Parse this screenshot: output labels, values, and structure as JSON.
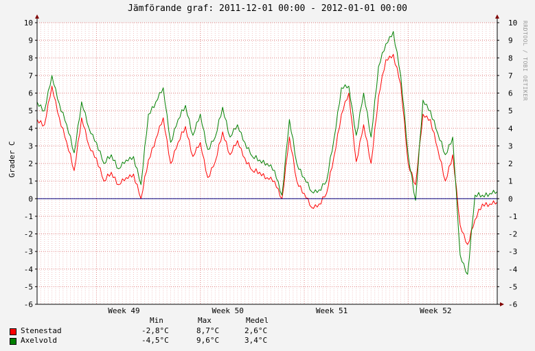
{
  "header": {
    "title": "Jämförande graf: 2011-12-01 00:00 - 2012-01-01 00:00",
    "watermark": "RRDTOOL / TOBI OETIKER"
  },
  "colors": {
    "background": "#F3F3F3",
    "plot_background": "#FFFFFF",
    "grid_minor": "#F0C0C0",
    "grid_major": "#E08080",
    "zero_line": "#000080",
    "axis": "#000000",
    "arrow": "#800000"
  },
  "chart_data": {
    "type": "line",
    "title": "Jämförande graf: 2011-12-01 00:00 - 2012-01-01 00:00",
    "ylabel": "Grader C",
    "xlabel": "",
    "ylim": [
      -6,
      10
    ],
    "xlim": [
      "2011-12-01 00:00",
      "2012-01-01 00:00"
    ],
    "y_ticks": [
      -6,
      -5,
      -4,
      -3,
      -2,
      -1,
      0,
      1,
      2,
      3,
      4,
      5,
      6,
      7,
      8,
      9,
      10
    ],
    "x_ticks": [
      {
        "label": "Week 49",
        "x": "2011-12-05 00:00"
      },
      {
        "label": "Week 50",
        "x": "2011-12-12 00:00"
      },
      {
        "label": "Week 51",
        "x": "2011-12-19 00:00"
      },
      {
        "label": "Week 52",
        "x": "2011-12-26 00:00"
      }
    ],
    "grid": true,
    "legend_position": "bottom-left",
    "legend_headers": [
      "Min",
      "Max",
      "Medel"
    ],
    "x": [
      "2011-12-01",
      "2011-12-01 12:00",
      "2011-12-02",
      "2011-12-02 12:00",
      "2011-12-03",
      "2011-12-03 12:00",
      "2011-12-04",
      "2011-12-04 12:00",
      "2011-12-05",
      "2011-12-05 12:00",
      "2011-12-06",
      "2011-12-06 12:00",
      "2011-12-07",
      "2011-12-07 12:00",
      "2011-12-08",
      "2011-12-08 12:00",
      "2011-12-09",
      "2011-12-09 12:00",
      "2011-12-10",
      "2011-12-10 12:00",
      "2011-12-11",
      "2011-12-11 12:00",
      "2011-12-12",
      "2011-12-12 12:00",
      "2011-12-13",
      "2011-12-13 12:00",
      "2011-12-14",
      "2011-12-14 12:00",
      "2011-12-15",
      "2011-12-15 12:00",
      "2011-12-16",
      "2011-12-16 12:00",
      "2011-12-17",
      "2011-12-17 12:00",
      "2011-12-18",
      "2011-12-18 12:00",
      "2011-12-19",
      "2011-12-19 12:00",
      "2011-12-20",
      "2011-12-20 12:00",
      "2011-12-21",
      "2011-12-21 12:00",
      "2011-12-22",
      "2011-12-22 12:00",
      "2011-12-23",
      "2011-12-23 12:00",
      "2011-12-24",
      "2011-12-24 12:00",
      "2011-12-25",
      "2011-12-25 12:00",
      "2011-12-26",
      "2011-12-26 12:00",
      "2011-12-27",
      "2011-12-27 12:00",
      "2011-12-28",
      "2011-12-28 12:00",
      "2011-12-29",
      "2011-12-29 12:00",
      "2011-12-30",
      "2011-12-30 12:00",
      "2011-12-31",
      "2011-12-31 12:00",
      "2012-01-01"
    ],
    "series": [
      {
        "name": "Stenestad",
        "color": "#FF0000",
        "min": "-2,8°C",
        "max": "8,7°C",
        "mean": "2,6°C",
        "values": [
          4.5,
          4.2,
          6.4,
          4.6,
          3.2,
          1.6,
          4.6,
          3.0,
          2.3,
          1.0,
          1.5,
          0.8,
          1.2,
          1.4,
          0.0,
          2.2,
          3.4,
          4.6,
          2.0,
          3.2,
          4.1,
          2.4,
          3.2,
          1.2,
          2.1,
          3.8,
          2.5,
          3.3,
          2.3,
          1.6,
          1.5,
          1.2,
          1.0,
          0.0,
          3.5,
          1.0,
          0.3,
          -0.5,
          -0.3,
          0.3,
          2.4,
          4.8,
          6.0,
          2.1,
          4.2,
          2.0,
          5.8,
          7.9,
          8.2,
          6.5,
          2.0,
          0.8,
          4.8,
          4.5,
          2.8,
          1.0,
          2.5,
          -1.5,
          -2.6,
          -1.2,
          -0.3,
          -0.3,
          -0.2
        ]
      },
      {
        "name": "Axelvold",
        "color": "#008000",
        "min": "-4,5°C",
        "max": "9,6°C",
        "mean": "3,4°C",
        "values": [
          5.5,
          5.0,
          7.0,
          5.4,
          4.2,
          2.6,
          5.5,
          4.0,
          3.2,
          2.0,
          2.5,
          1.7,
          2.2,
          2.4,
          0.8,
          4.8,
          5.5,
          6.3,
          3.2,
          4.5,
          5.3,
          3.6,
          4.8,
          2.8,
          3.5,
          5.2,
          3.5,
          4.2,
          3.2,
          2.4,
          2.2,
          2.0,
          1.6,
          0.2,
          4.5,
          2.0,
          1.2,
          0.4,
          0.5,
          1.0,
          3.4,
          6.3,
          6.4,
          3.6,
          6.0,
          3.5,
          7.5,
          8.8,
          9.5,
          7.0,
          2.5,
          -0.1,
          5.6,
          5.0,
          3.7,
          2.5,
          3.5,
          -3.2,
          -4.3,
          0.2,
          0.2,
          0.3,
          0.4
        ]
      }
    ]
  }
}
